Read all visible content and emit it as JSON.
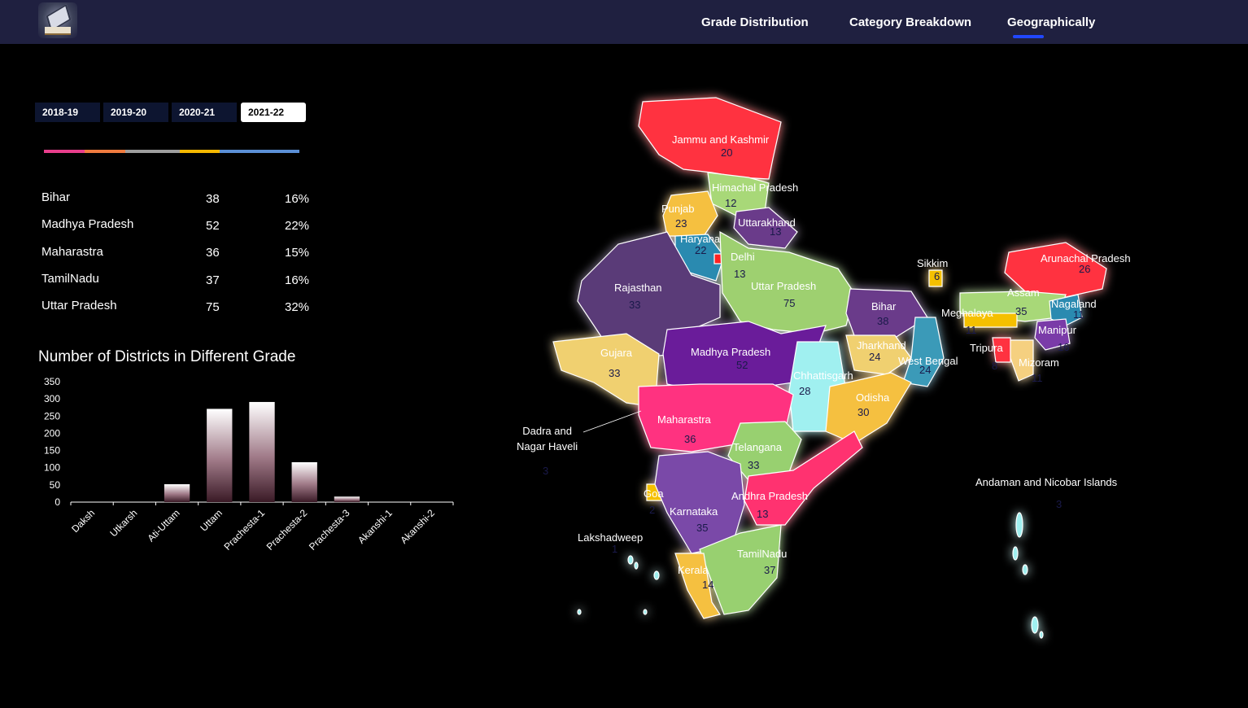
{
  "nav": {
    "items": [
      "Grade Distribution",
      "Category Breakdown",
      "Geographically"
    ],
    "active": "Geographically"
  },
  "years": [
    "2018-19",
    "2019-20",
    "2020-21",
    "2021-22"
  ],
  "selected_year": "2021-22",
  "stripe_colors": [
    "#e83e8c",
    "#f07b3f",
    "#9e9e9e",
    "#f5b800",
    "#5b8fd6"
  ],
  "top_states": [
    {
      "name": "Bihar",
      "count": "38",
      "pct": "16%"
    },
    {
      "name": "Madhya Pradesh",
      "count": "52",
      "pct": "22%"
    },
    {
      "name": "Maharastra",
      "count": "36",
      "pct": "15%"
    },
    {
      "name": "TamilNadu",
      "count": "37",
      "pct": "16%"
    },
    {
      "name": "Uttar Pradesh",
      "count": "75",
      "pct": "32%"
    }
  ],
  "chart_data": {
    "type": "bar",
    "title": "Number of Districts in Different Grade",
    "categories": [
      "Daksh",
      "Utkarsh",
      "Ati-Uttam",
      "Uttam",
      "Prachesta-1",
      "Prachesta-2",
      "Prachesta-3",
      "Akanshi-1",
      "Akanshi-2"
    ],
    "values": [
      0,
      0,
      52,
      271,
      291,
      116,
      16,
      0,
      0
    ],
    "yticks": [
      0,
      50,
      100,
      150,
      200,
      250,
      300,
      350
    ],
    "ylim": [
      0,
      350
    ],
    "grid": false,
    "bar_color": "#5a3040"
  },
  "map": {
    "states": [
      {
        "name": "Jammu and Kashmir",
        "value": "20",
        "color": "#ff3040"
      },
      {
        "name": "Himachal Pradesh",
        "value": "12",
        "color": "#a8d878"
      },
      {
        "name": "Punjab",
        "value": "23",
        "color": "#f5c040"
      },
      {
        "name": "Uttarakhand",
        "value": "13",
        "color": "#6a3a8a"
      },
      {
        "name": "Haryana",
        "value": "22",
        "color": "#2a8ab0"
      },
      {
        "name": "Delhi",
        "value": "13",
        "color": "#ff2020"
      },
      {
        "name": "Rajasthan",
        "value": "33",
        "color": "#5a3a78"
      },
      {
        "name": "Uttar Pradesh",
        "value": "75",
        "color": "#9ed070"
      },
      {
        "name": "Sikkim",
        "value": "6",
        "color": "#f5c000"
      },
      {
        "name": "Arunachal Pradesh",
        "value": "26",
        "color": "#ff3040"
      },
      {
        "name": "Assam",
        "value": "35",
        "color": "#a8d878"
      },
      {
        "name": "Nagaland",
        "value": "11",
        "color": "#2a8ab0"
      },
      {
        "name": "Meghalaya",
        "value": "11",
        "color": "#f5c000"
      },
      {
        "name": "Bihar",
        "value": "38",
        "color": "#6a3a8a"
      },
      {
        "name": "Manipur",
        "value": "16",
        "color": "#7a3aa8"
      },
      {
        "name": "Tripura",
        "value": "8",
        "color": "#ff3040"
      },
      {
        "name": "Mizoram",
        "value": "11",
        "color": "#f5d080"
      },
      {
        "name": "Gujara",
        "value": "33",
        "color": "#f0d070"
      },
      {
        "name": "Madhya Pradesh",
        "value": "52",
        "color": "#6a1a9a"
      },
      {
        "name": "Jharkhand",
        "value": "24",
        "color": "#f0d070"
      },
      {
        "name": "West Bengal",
        "value": "24",
        "color": "#3a9ab8"
      },
      {
        "name": "Chhattisgarh",
        "value": "28",
        "color": "#a0f0f0"
      },
      {
        "name": "Odisha",
        "value": "30",
        "color": "#f5c040"
      },
      {
        "name": "Maharastra",
        "value": "36",
        "color": "#ff3080"
      },
      {
        "name": "Telangana",
        "value": "33",
        "color": "#98d070"
      },
      {
        "name": "Goa",
        "value": "2",
        "color": "#f5c000"
      },
      {
        "name": "Andhra Pradesh",
        "value": "13",
        "color": "#ff3070"
      },
      {
        "name": "Karnataka",
        "value": "35",
        "color": "#7a4aa8"
      },
      {
        "name": "TamilNadu",
        "value": "37",
        "color": "#98d070"
      },
      {
        "name": "Kerala",
        "value": "14",
        "color": "#f5c040"
      },
      {
        "name": "Dadra and\nNagar Haveli",
        "value": "3",
        "color": "#ffffff"
      },
      {
        "name": "Lakshadweep",
        "value": "1",
        "color": "#ffffff"
      },
      {
        "name": "Andaman and Nicobar Islands",
        "value": "3",
        "color": "#a0f0f0"
      }
    ]
  }
}
